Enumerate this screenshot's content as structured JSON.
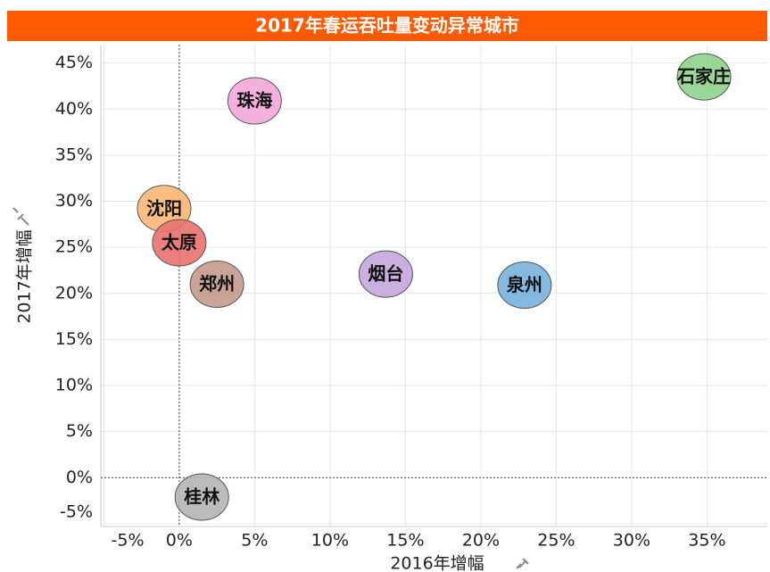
{
  "chart_data": {
    "type": "scatter",
    "title": "2017年春运吞吐量变动异常城市",
    "xlabel": "2016年增幅",
    "ylabel": "2017年增幅",
    "grid": true,
    "reference_lines": true,
    "xlim": [
      -5.2,
      39
    ],
    "ylim": [
      -5.3,
      47
    ],
    "xticks": [
      {
        "value": -5,
        "label": "-5%"
      },
      {
        "value": 0,
        "label": "0%"
      },
      {
        "value": 5,
        "label": "5%"
      },
      {
        "value": 10,
        "label": "10%"
      },
      {
        "value": 15,
        "label": "15%"
      },
      {
        "value": 20,
        "label": "20%"
      },
      {
        "value": 25,
        "label": "25%"
      },
      {
        "value": 30,
        "label": "30%"
      },
      {
        "value": 35,
        "label": "35%"
      }
    ],
    "yticks": [
      {
        "value": -5,
        "label": "-5%"
      },
      {
        "value": 0,
        "label": "0%"
      },
      {
        "value": 5,
        "label": "5%"
      },
      {
        "value": 10,
        "label": "10%"
      },
      {
        "value": 15,
        "label": "15%"
      },
      {
        "value": 20,
        "label": "20%"
      },
      {
        "value": 25,
        "label": "25%"
      },
      {
        "value": 30,
        "label": "30%"
      },
      {
        "value": 35,
        "label": "35%"
      },
      {
        "value": 40,
        "label": "40%"
      },
      {
        "value": 45,
        "label": "45%"
      }
    ],
    "points": [
      {
        "name": "石家庄",
        "color": "#8fd18a",
        "x": 34.8,
        "y": 43.5
      },
      {
        "name": "珠海",
        "color": "#f2a7d8",
        "x": 5,
        "y": 40.9
      },
      {
        "name": "沈阳",
        "color": "#f9b774",
        "x": -1,
        "y": 29.2
      },
      {
        "name": "太原",
        "color": "#e8716f",
        "x": 0,
        "y": 25.5
      },
      {
        "name": "郑州",
        "color": "#c49a8c",
        "x": 2.5,
        "y": 21
      },
      {
        "name": "烟台",
        "color": "#c5a7dc",
        "x": 13.7,
        "y": 22.1
      },
      {
        "name": "泉州",
        "color": "#79b1dc",
        "x": 22.9,
        "y": 20.9
      },
      {
        "name": "桂林",
        "color": "#b5b5b5",
        "x": 1.5,
        "y": -2.1
      }
    ]
  }
}
